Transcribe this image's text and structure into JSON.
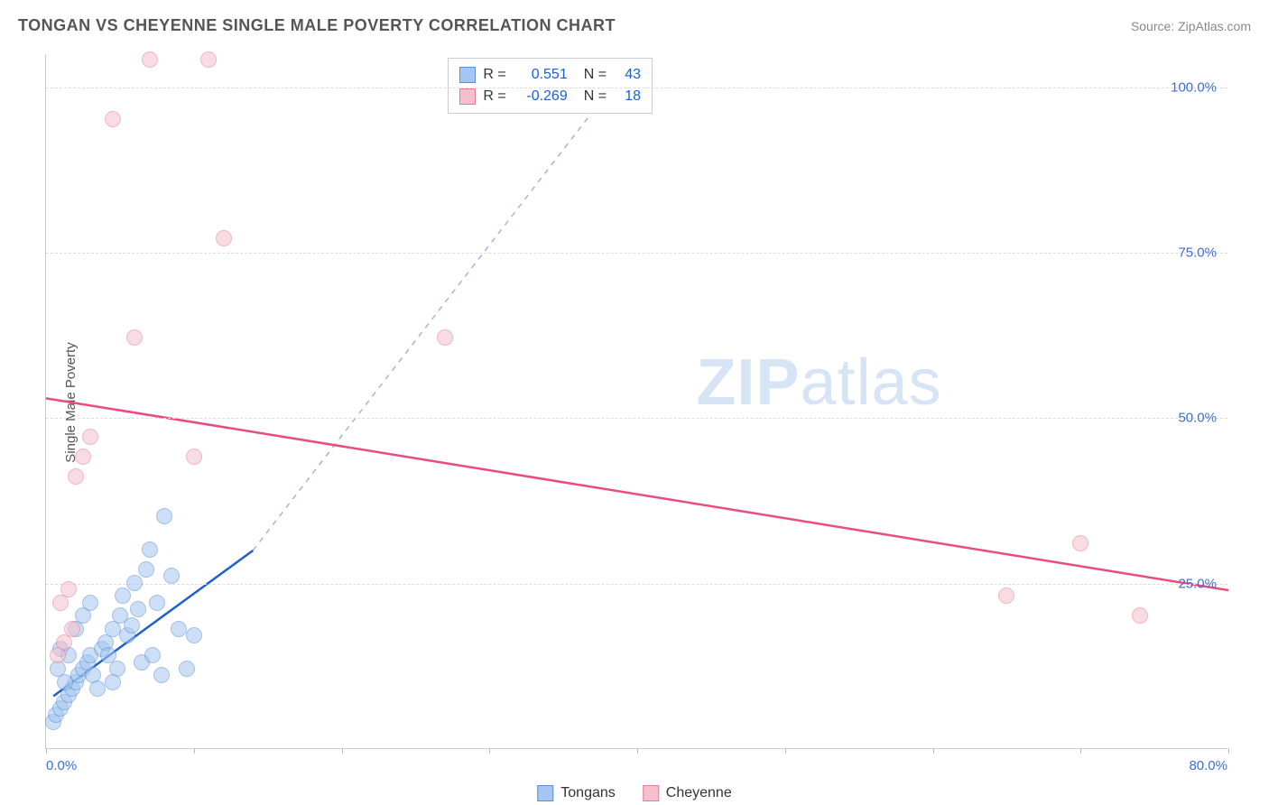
{
  "header": {
    "title": "TONGAN VS CHEYENNE SINGLE MALE POVERTY CORRELATION CHART",
    "source_prefix": "Source: ",
    "source_name": "ZipAtlas.com"
  },
  "ylabel": "Single Male Poverty",
  "chart": {
    "type": "scatter",
    "background_color": "#ffffff",
    "grid_color": "#dddddd",
    "axis_color": "#cccccc",
    "tick_label_color": "#3b6fd4",
    "tick_fontsize": 15,
    "xlim": [
      0,
      80
    ],
    "ylim": [
      0,
      105
    ],
    "xtick_positions": [
      0,
      10,
      20,
      30,
      40,
      50,
      60,
      70,
      80
    ],
    "xtick_labels": {
      "0": "0.0%",
      "80": "80.0%"
    },
    "ytick_positions": [
      25,
      50,
      75,
      100
    ],
    "ytick_labels": {
      "25": "25.0%",
      "50": "50.0%",
      "75": "75.0%",
      "100": "100.0%"
    },
    "marker_radius": 9,
    "marker_opacity": 0.55,
    "series": [
      {
        "name": "Tongans",
        "fill_color": "#a4c6f0",
        "border_color": "#5a8fd6",
        "trend_color": "#1f5fd0",
        "trend_dash_color": "#9fb8d8",
        "trend_width": 2.5,
        "r": "0.551",
        "n": "43",
        "trend_solid": {
          "x1": 0.5,
          "y1": 8,
          "x2": 14,
          "y2": 30
        },
        "trend_dashed": {
          "x1": 14,
          "y1": 30,
          "x2": 40,
          "y2": 105
        },
        "points": [
          [
            0.5,
            4
          ],
          [
            0.7,
            5
          ],
          [
            1.0,
            6
          ],
          [
            1.2,
            7
          ],
          [
            1.5,
            8
          ],
          [
            1.8,
            9
          ],
          [
            2.0,
            10
          ],
          [
            2.2,
            11
          ],
          [
            2.5,
            12
          ],
          [
            2.8,
            13
          ],
          [
            3.0,
            14
          ],
          [
            3.2,
            11
          ],
          [
            3.5,
            9
          ],
          [
            3.8,
            15
          ],
          [
            4.0,
            16
          ],
          [
            4.2,
            14
          ],
          [
            4.5,
            18
          ],
          [
            4.8,
            12
          ],
          [
            5.0,
            20
          ],
          [
            5.2,
            23
          ],
          [
            5.5,
            17
          ],
          [
            5.8,
            18.5
          ],
          [
            6.0,
            25
          ],
          [
            6.2,
            21
          ],
          [
            6.5,
            13
          ],
          [
            6.8,
            27
          ],
          [
            7.0,
            30
          ],
          [
            7.2,
            14
          ],
          [
            7.5,
            22
          ],
          [
            7.8,
            11
          ],
          [
            8.0,
            35
          ],
          [
            8.5,
            26
          ],
          [
            9.0,
            18
          ],
          [
            9.5,
            12
          ],
          [
            10.0,
            17
          ],
          [
            2.0,
            18
          ],
          [
            2.5,
            20
          ],
          [
            3.0,
            22
          ],
          [
            1.0,
            15
          ],
          [
            1.5,
            14
          ],
          [
            0.8,
            12
          ],
          [
            1.3,
            10
          ],
          [
            4.5,
            10
          ]
        ]
      },
      {
        "name": "Cheyenne",
        "fill_color": "#f4c0cd",
        "border_color": "#e77a99",
        "trend_color": "#e94d80",
        "trend_width": 2.5,
        "r": "-0.269",
        "n": "18",
        "trend_solid": {
          "x1": 0,
          "y1": 53,
          "x2": 80,
          "y2": 24
        },
        "points": [
          [
            1.0,
            22
          ],
          [
            1.5,
            24
          ],
          [
            2.0,
            41
          ],
          [
            2.5,
            44
          ],
          [
            3.0,
            47
          ],
          [
            4.5,
            95
          ],
          [
            6.0,
            62
          ],
          [
            7.0,
            104
          ],
          [
            10.0,
            44
          ],
          [
            11.0,
            104
          ],
          [
            12.0,
            77
          ],
          [
            27.0,
            62
          ],
          [
            65.0,
            23
          ],
          [
            70.0,
            31
          ],
          [
            74.0,
            20
          ],
          [
            1.2,
            16
          ],
          [
            1.8,
            18
          ],
          [
            0.8,
            14
          ]
        ]
      }
    ]
  },
  "legend": {
    "r_label": "R =",
    "n_label": "N =",
    "value_color": "#1f5fd0",
    "text_color": "#333333"
  },
  "bottom_legend": [
    {
      "label": "Tongans",
      "fill": "#a4c6f0",
      "border": "#5a8fd6"
    },
    {
      "label": "Cheyenne",
      "fill": "#f4c0cd",
      "border": "#e77a99"
    }
  ],
  "watermark": {
    "text_bold": "ZIP",
    "text_rest": "atlas",
    "color": "#d6e4f5"
  }
}
